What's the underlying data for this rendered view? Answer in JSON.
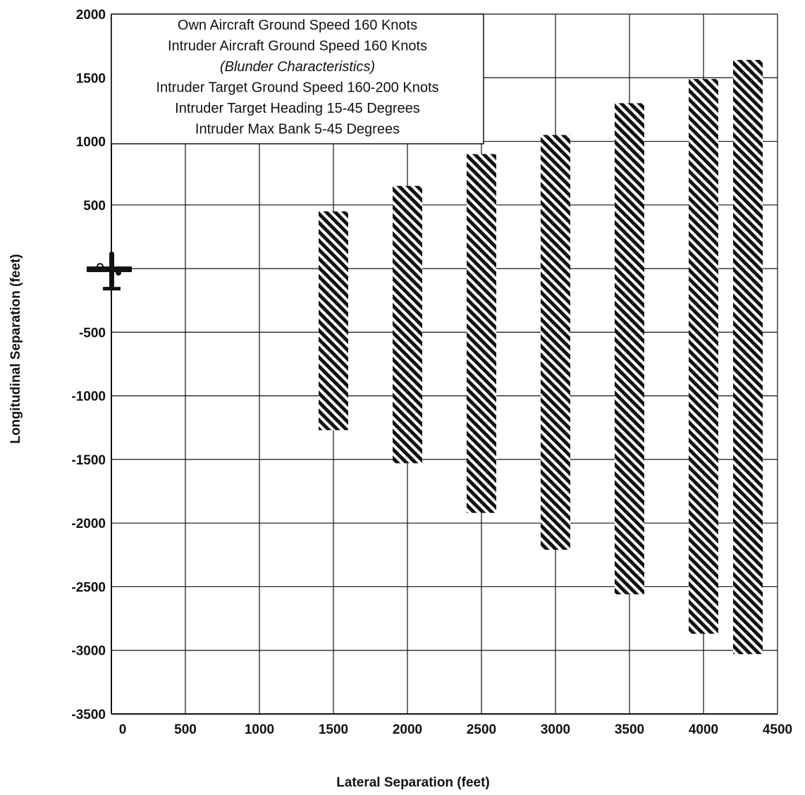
{
  "chart_data": {
    "type": "bar",
    "title": "",
    "xlabel": "Lateral Separation (feet)",
    "ylabel": "Longitudinal Separation (feet)",
    "xlim": [
      0,
      4500
    ],
    "ylim": [
      -3500,
      2000
    ],
    "x_ticks": [
      "0",
      "500",
      "1000",
      "1500",
      "2000",
      "2500",
      "3000",
      "3500",
      "4000",
      "4500"
    ],
    "y_ticks": [
      "2000",
      "1500",
      "1000",
      "500",
      "",
      "-500",
      "-1000",
      "-1500",
      "-2000",
      "-2500",
      "-3000",
      "-3500"
    ],
    "grid": true,
    "own_aircraft": {
      "x": 0,
      "y": 0,
      "icon": "airplane-icon"
    },
    "legend_lines": [
      {
        "text": "Own Aircraft Ground Speed 160 Knots",
        "italic": false
      },
      {
        "text": "Intruder Aircraft Ground Speed 160 Knots",
        "italic": false
      },
      {
        "text": "(Blunder Characteristics)",
        "italic": true
      },
      {
        "text": "Intruder Target Ground Speed 160-200 Knots",
        "italic": false
      },
      {
        "text": "Intruder Target Heading 15-45 Degrees",
        "italic": false
      },
      {
        "text": "Intruder Max Bank 5-45 Degrees",
        "italic": false
      }
    ],
    "legend_position": "top-left",
    "series": [
      {
        "pattern": "diagonal-hatch",
        "bars": [
          {
            "x_start": 1400,
            "x_end": 1600,
            "y_top": 450,
            "y_bottom": -1270
          },
          {
            "x_start": 1900,
            "x_end": 2100,
            "y_top": 650,
            "y_bottom": -1530
          },
          {
            "x_start": 2400,
            "x_end": 2600,
            "y_top": 900,
            "y_bottom": -1920
          },
          {
            "x_start": 2900,
            "x_end": 3100,
            "y_top": 1050,
            "y_bottom": -2210
          },
          {
            "x_start": 3400,
            "x_end": 3600,
            "y_top": 1300,
            "y_bottom": -2560
          },
          {
            "x_start": 3900,
            "x_end": 4100,
            "y_top": 1490,
            "y_bottom": -2870
          },
          {
            "x_start": 4200,
            "x_end": 4400,
            "y_top": 1640,
            "y_bottom": -3030
          }
        ]
      }
    ],
    "colors": {
      "ink": "#111111",
      "background": "#ffffff"
    }
  }
}
